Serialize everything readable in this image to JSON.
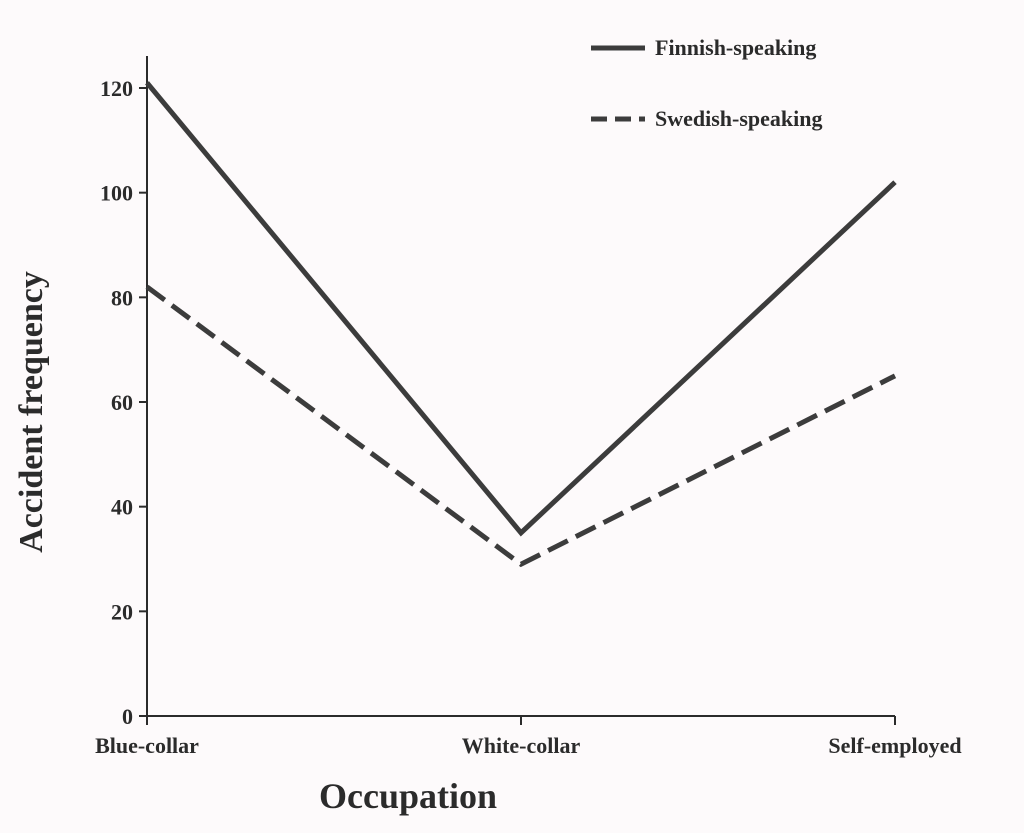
{
  "chart_data": {
    "type": "line",
    "categories": [
      "Blue-collar",
      "White-collar",
      "Self-employed"
    ],
    "series": [
      {
        "name": "Finnish-speaking",
        "values": [
          121,
          35,
          102
        ],
        "line_style": "solid"
      },
      {
        "name": "Swedish-speaking",
        "values": [
          82,
          29,
          65
        ],
        "line_style": "dashed"
      }
    ],
    "xlabel": "Occupation",
    "ylabel": "Accident frequency",
    "ylim": [
      0,
      120
    ],
    "yticks": [
      0,
      20,
      40,
      60,
      80,
      100,
      120
    ],
    "grid": false,
    "legend_position": "top-right",
    "colors": {
      "line": "#3c3c3c",
      "axis": "#2b2b2b",
      "background": "#fdfafb"
    }
  }
}
